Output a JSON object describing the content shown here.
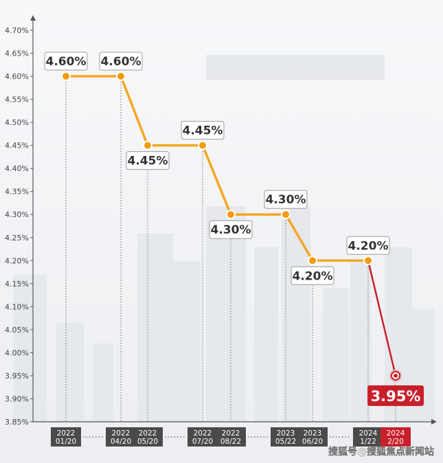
{
  "chart_data": {
    "type": "line",
    "title": "",
    "xlabel": "",
    "ylabel": "",
    "ylim": [
      3.85,
      4.7
    ],
    "yticks": [
      "3.85%",
      "3.90%",
      "3.95%",
      "4.00%",
      "4.05%",
      "4.10%",
      "4.15%",
      "4.20%",
      "4.25%",
      "4.30%",
      "4.35%",
      "4.40%",
      "4.45%",
      "4.50%",
      "4.55%",
      "4.60%",
      "4.65%",
      "4.70%"
    ],
    "grid": false,
    "points": [
      {
        "date": [
          "2022",
          "01/20"
        ],
        "value": 4.6,
        "label": "4.60%",
        "label_pos": "above"
      },
      {
        "date": [
          "2022",
          "04/20"
        ],
        "value": 4.6,
        "label": "4.60%",
        "label_pos": "above"
      },
      {
        "date": [
          "2022",
          "05/20"
        ],
        "value": 4.45,
        "label": "4.45%",
        "label_pos": "below"
      },
      {
        "date": [
          "2022",
          "07/20"
        ],
        "value": 4.45,
        "label": "4.45%",
        "label_pos": "above"
      },
      {
        "date": [
          "2022",
          "08/22"
        ],
        "value": 4.3,
        "label": "4.30%",
        "label_pos": "below"
      },
      {
        "date": [
          "2023",
          "05/22"
        ],
        "value": 4.3,
        "label": "4.30%",
        "label_pos": "above"
      },
      {
        "date": [
          "2023",
          "06/20"
        ],
        "value": 4.2,
        "label": "4.20%",
        "label_pos": "below"
      },
      {
        "date": [
          "2024",
          "1/22"
        ],
        "value": 4.2,
        "label": "4.20%",
        "label_pos": "above"
      },
      {
        "date": [
          "2024",
          "2/20"
        ],
        "value": 3.95,
        "label": "3.95%",
        "label_pos": "below",
        "highlight": true
      }
    ],
    "colors": {
      "line": "#f5a623",
      "line_drop": "#c8202a",
      "marker": "#f39c12",
      "highlight": "#c8202a",
      "date_box": "#4a4a4a",
      "date_box_highlight": "#c8202a"
    }
  },
  "watermark": "搜狐号@搜狐焦点新闻站"
}
